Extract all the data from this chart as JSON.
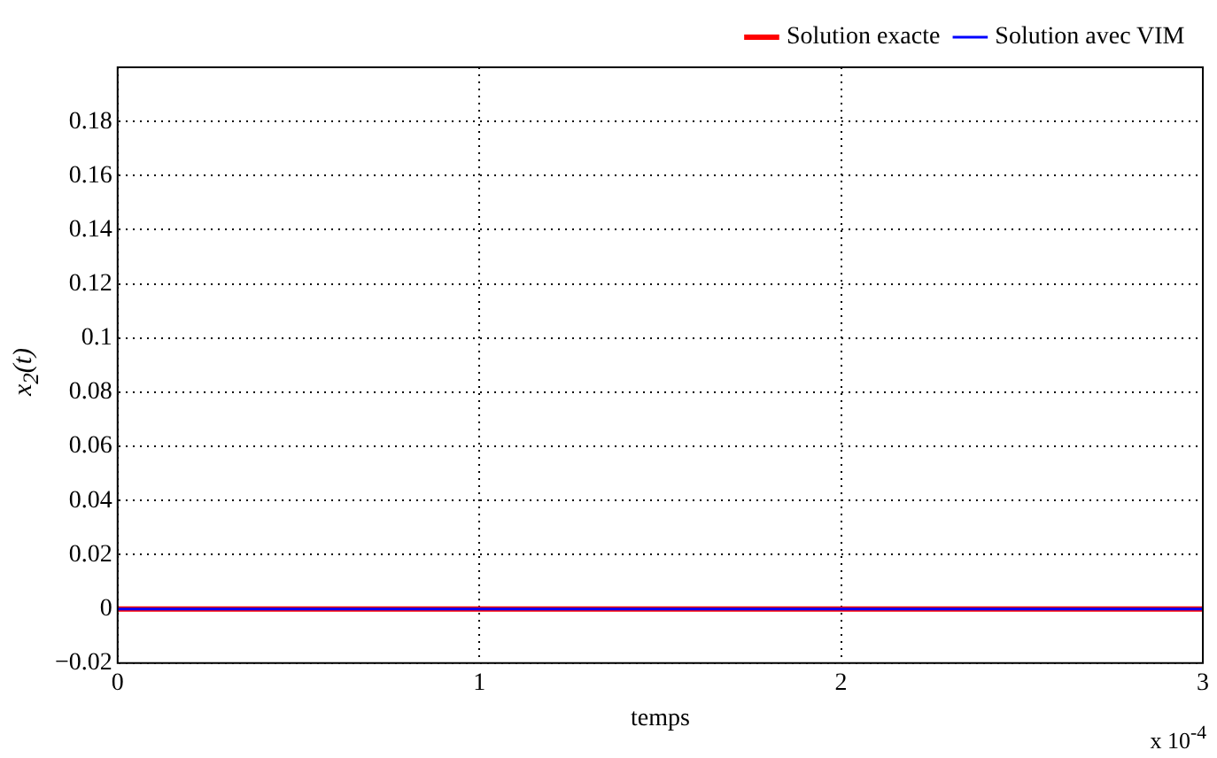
{
  "chart_data": {
    "type": "line",
    "xlabel": "temps",
    "ylabel": "x$_{2}$(t)",
    "annotations": [
      "x 10$^{-4}$"
    ],
    "x": [
      0,
      3
    ],
    "series": [
      {
        "name": "Solution exacte",
        "color": "#ff0000",
        "values": [
          0,
          0
        ]
      },
      {
        "name": "Solution avec VIM",
        "color": "#0000ff",
        "values": [
          0,
          0
        ]
      }
    ],
    "xlim": [
      0,
      3
    ],
    "xticks": [
      0,
      1,
      2,
      3
    ],
    "ylim": [
      -0.02,
      0.2
    ],
    "yticks": [
      {
        "value": -0.02,
        "label": "−0.02"
      },
      0,
      0.02,
      0.04,
      0.06,
      0.08,
      0.1,
      0.12,
      0.14,
      0.16,
      0.18
    ],
    "grid": true,
    "legend": "top right",
    "marker": "none",
    "line_style": "solid"
  }
}
